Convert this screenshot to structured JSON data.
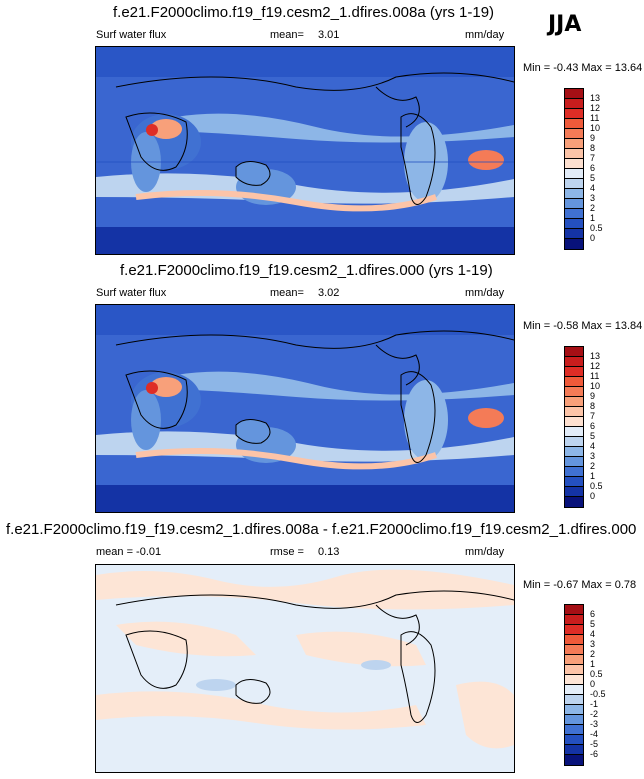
{
  "season": "JJA",
  "panels": [
    {
      "title": "f.e21.F2000climo.f19_f19.cesm2_1.dfires.008a (yrs 1-19)",
      "left_label": "Surf water flux",
      "stat_label": "mean=",
      "stat_value": "3.01",
      "units": "mm/day",
      "minmax": "Min = -0.43 Max = 13.64",
      "colorbar_labels": [
        "13",
        "12",
        "11",
        "10",
        "9",
        "8",
        "7",
        "6",
        "5",
        "4",
        "3",
        "2",
        "1",
        "0.5",
        "0"
      ],
      "colors": [
        "#a50f15",
        "#c81d1d",
        "#de2d26",
        "#ef5a3a",
        "#f47b57",
        "#f8a07a",
        "#fcc4a8",
        "#fde0d0",
        "#e2ecf8",
        "#bdd4ef",
        "#8db6e7",
        "#6495dd",
        "#4071d2",
        "#2450c0",
        "#1433a5",
        "#08127a"
      ]
    },
    {
      "title": "f.e21.F2000climo.f19_f19.cesm2_1.dfires.000 (yrs 1-19)",
      "left_label": "Surf water flux",
      "stat_label": "mean=",
      "stat_value": "3.02",
      "units": "mm/day",
      "minmax": "Min = -0.58 Max = 13.84",
      "colorbar_labels": [
        "13",
        "12",
        "11",
        "10",
        "9",
        "8",
        "7",
        "6",
        "5",
        "4",
        "3",
        "2",
        "1",
        "0.5",
        "0"
      ],
      "colors": [
        "#a50f15",
        "#c81d1d",
        "#de2d26",
        "#ef5a3a",
        "#f47b57",
        "#f8a07a",
        "#fcc4a8",
        "#fde0d0",
        "#e2ecf8",
        "#bdd4ef",
        "#8db6e7",
        "#6495dd",
        "#4071d2",
        "#2450c0",
        "#1433a5",
        "#08127a"
      ]
    },
    {
      "title": "f.e21.F2000climo.f19_f19.cesm2_1.dfires.008a - f.e21.F2000climo.f19_f19.cesm2_1.dfires.000",
      "left_label": "mean = -0.01",
      "stat_label": "rmse =",
      "stat_value": "0.13",
      "units": "mm/day",
      "minmax": "Min = -0.67 Max = 0.78",
      "colorbar_labels": [
        "6",
        "5",
        "4",
        "3",
        "2",
        "1",
        "0.5",
        "0",
        "-0.5",
        "-1",
        "-2",
        "-3",
        "-4",
        "-5",
        "-6"
      ],
      "colors": [
        "#a50f15",
        "#c81d1d",
        "#de2d26",
        "#ef5a3a",
        "#f47b57",
        "#f8a07a",
        "#fcc4a8",
        "#fde5d6",
        "#e4eef9",
        "#bdd4ef",
        "#8db6e7",
        "#6495dd",
        "#4071d2",
        "#2450c0",
        "#1433a5",
        "#08127a"
      ]
    }
  ]
}
